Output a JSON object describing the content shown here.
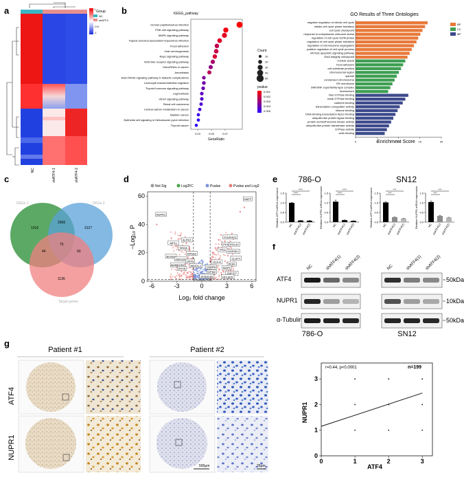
{
  "panels": {
    "a": {
      "label": "a",
      "legend_title": "Group",
      "legend_groups": [
        {
          "name": "NC",
          "color": "#3ab6c4"
        },
        {
          "name": "shATF4",
          "color": "#e8908f"
        }
      ],
      "scale_ticks": [
        "1",
        "0.5",
        "0",
        "-0.5",
        "-1"
      ],
      "col_labels": [
        "NC",
        "shATF4-1",
        "shATF4-2"
      ]
    },
    "b": {
      "label": "b"
    },
    "c": {
      "label": "c"
    },
    "d": {
      "label": "d"
    },
    "e": {
      "label": "e"
    },
    "f": {
      "label": "f"
    },
    "g": {
      "label": "g"
    }
  },
  "kegg": {
    "title": "KEGG_pathway",
    "terms": [
      "Human papillomavirus infection",
      "PI3K-Akt signaling pathway",
      "MAPK signaling pathway",
      "Kaposi sarcoma-associated herpesvirus infection",
      "Focal adhesion",
      "Viral carcinogenesis",
      "Rap1 signaling pathway",
      "NOD-like receptor signaling pathway",
      "MicroRNAs in cancer",
      "Amoebiasis",
      "AGE-RAGE signaling pathway in diabetic complications",
      "Leukocyte transendothelial migration",
      "Thyroid hormone signaling pathway",
      "Legionellosis",
      "VEGF signaling pathway",
      "Renal cell carcinoma",
      "Central carbon metabolism in cancer",
      "Bladder cancer",
      "Epithelial cell signaling in Helicobacter pylori infection",
      "Thyroid cancer"
    ],
    "gene_ratio": [
      0.091,
      0.071,
      0.069,
      0.062,
      0.058,
      0.057,
      0.055,
      0.052,
      0.049,
      0.047,
      0.039,
      0.039,
      0.038,
      0.036,
      0.036,
      0.035,
      0.033,
      0.031,
      0.031,
      0.028
    ],
    "count": [
      40,
      31,
      30,
      27,
      25,
      25,
      24,
      23,
      22,
      21,
      17,
      17,
      17,
      16,
      16,
      15,
      14,
      13,
      13,
      12
    ],
    "pvalue": [
      0.001,
      0.0014,
      0.0018,
      0.002,
      0.0028,
      0.0026,
      0.0022,
      0.0035,
      0.004,
      0.003,
      0.0045,
      0.005,
      0.0052,
      0.0055,
      0.0058,
      0.006,
      0.0062,
      0.0065,
      0.0068,
      0.007
    ],
    "x_ticks": [
      "0.03",
      "0.05",
      "0.07"
    ],
    "x_label": "GeneRatio",
    "count_title": "Count",
    "count_ticks": [
      "10",
      "20",
      "30",
      "40",
      "50"
    ],
    "pvalue_title": "pvalue",
    "pvalue_ticks": [
      "0.001",
      "0.002",
      "0.003",
      "0.004",
      "0.005"
    ]
  },
  "go": {
    "title": "GO Results of Three Ontologies",
    "x_label": "Enrichment Score",
    "x_ticks": [
      "0",
      "5",
      "10",
      "15",
      "20"
    ],
    "legend": [
      {
        "name": "BP",
        "color": "#e8793a"
      },
      {
        "name": "CC",
        "color": "#3e9e52"
      },
      {
        "name": "MF",
        "color": "#3d4a8c"
      }
    ],
    "terms": [
      {
        "term": "negative regulation of mitotic cell cycle",
        "score": 16.8,
        "cat": "BP"
      },
      {
        "term": "mitotic cell cycle phase transition",
        "score": 16.2,
        "cat": "BP"
      },
      {
        "term": "cell cycle checkpoint",
        "score": 15.6,
        "cat": "BP"
      },
      {
        "term": "response to endoplasmic reticulum stress",
        "score": 15.1,
        "cat": "BP"
      },
      {
        "term": "regulation of cell cycle G2/M phase",
        "score": 14.6,
        "cat": "BP"
      },
      {
        "term": "regulation of cell cycle phase transition",
        "score": 14.2,
        "cat": "BP"
      },
      {
        "term": "regulation of chromosome segregation",
        "score": 13.6,
        "cat": "BP"
      },
      {
        "term": "positive regulation of cell cycle process",
        "score": 13.1,
        "cat": "BP"
      },
      {
        "term": "intrinsic apoptotic signaling pathway",
        "score": 12.6,
        "cat": "BP"
      },
      {
        "term": "DNA integrity checkpoint",
        "score": 12.1,
        "cat": "BP"
      },
      {
        "term": "nuclear speck",
        "score": 11.6,
        "cat": "CC"
      },
      {
        "term": "focal adhesion",
        "score": 11.1,
        "cat": "CC"
      },
      {
        "term": "cell-substrate junction",
        "score": 10.6,
        "cat": "CC"
      },
      {
        "term": "chromosomal region",
        "score": 10.1,
        "cat": "CC"
      },
      {
        "term": "spindle",
        "score": 9.6,
        "cat": "CC"
      },
      {
        "term": "condensed chromosome",
        "score": 9.1,
        "cat": "CC"
      },
      {
        "term": "ER membrane",
        "score": 8.6,
        "cat": "CC"
      },
      {
        "term": "SWI/SNF superfamily-type complex",
        "score": 8.1,
        "cat": "CC"
      },
      {
        "term": "kinetochore",
        "score": 7.6,
        "cat": "CC"
      },
      {
        "term": "Ras GTPase binding",
        "score": 12.3,
        "cat": "MF"
      },
      {
        "term": "small GTPase binding",
        "score": 11.6,
        "cat": "MF"
      },
      {
        "term": "cadherin binding",
        "score": 11.0,
        "cat": "MF"
      },
      {
        "term": "transcription coregulator activity",
        "score": 10.3,
        "cat": "MF"
      },
      {
        "term": "histone binding",
        "score": 9.8,
        "cat": "MF"
      },
      {
        "term": "DNA-binding transcription factor binding",
        "score": 9.3,
        "cat": "MF"
      },
      {
        "term": "ubiquitin-like protein ligase binding",
        "score": 8.8,
        "cat": "MF"
      },
      {
        "term": "protein serine/threonine kinase activity",
        "score": 8.3,
        "cat": "MF"
      },
      {
        "term": "ubiquitin-like protein transferase activity",
        "score": 7.8,
        "cat": "MF"
      },
      {
        "term": "GTPase activity",
        "score": 7.3,
        "cat": "MF"
      },
      {
        "term": "actin binding",
        "score": 6.8,
        "cat": "MF"
      }
    ]
  },
  "venn": {
    "sets": [
      {
        "name": "DEGs 1",
        "color": "#3f9a4a"
      },
      {
        "name": "DEGs 2",
        "color": "#5aa2d8"
      },
      {
        "name": "Target genes",
        "color": "#f08080"
      }
    ],
    "counts": {
      "only1": "1316",
      "only2": "3127",
      "only3": "1136",
      "s12": "2566",
      "s13": "44",
      "s23": "60",
      "s123": "75"
    }
  },
  "volcano": {
    "legend": [
      "Not Sig",
      "Log2FC",
      "Pvalue",
      "Pvalue and Log2FC"
    ],
    "legend_colors": [
      "#9a9a9a",
      "#47a447",
      "#7b93dd",
      "#e87d7d"
    ],
    "x_label": "Log₂ fold change",
    "y_label": "−Log₁₀ P",
    "x_ticks": [
      "-6",
      "-3",
      "0",
      "3",
      "6"
    ],
    "y_ticks": [
      "0",
      "20",
      "40",
      "60"
    ],
    "xlim": [
      -6.5,
      6.5
    ],
    "ylim": [
      0,
      63
    ],
    "labels": [
      {
        "text": "NUPR1",
        "x": -4.9,
        "y": 47
      },
      {
        "text": "ALPK2",
        "x": -1.8,
        "y": 29
      },
      {
        "text": "AIF1L",
        "x": -3.4,
        "y": 27
      },
      {
        "text": "SIN3A",
        "x": -2.2,
        "y": 23.5
      },
      {
        "text": "KPNA2",
        "x": -1.2,
        "y": 19.5
      },
      {
        "text": "BCAS3",
        "x": -3.7,
        "y": 17.5
      },
      {
        "text": "FBXO31",
        "x": -2.5,
        "y": 15.5
      },
      {
        "text": "OPX9",
        "x": -1.4,
        "y": 14
      },
      {
        "text": "AMMECR1",
        "x": -2.9,
        "y": 11.5
      },
      {
        "text": "MAD1L1",
        "x": -0.7,
        "y": 11
      },
      {
        "text": "DHX8",
        "x": -2.4,
        "y": 9
      },
      {
        "text": "SH3GLB2",
        "x": 0.6,
        "y": 3.5
      },
      {
        "text": "DPM2",
        "x": 1.2,
        "y": 6.5
      },
      {
        "text": "CEBPB",
        "x": 1.1,
        "y": 10
      },
      {
        "text": "HLA-A",
        "x": 1.8,
        "y": 13.5
      },
      {
        "text": "MAFF",
        "x": 5.5,
        "y": 58
      },
      {
        "text": "PLEKHO1",
        "x": 3.4,
        "y": 31
      },
      {
        "text": "PKN2",
        "x": 3.0,
        "y": 26
      },
      {
        "text": "RGL4X",
        "x": 3.9,
        "y": 26
      },
      {
        "text": "PPIA",
        "x": 2.5,
        "y": 22
      },
      {
        "text": "DDR3K1",
        "x": 3.8,
        "y": 21
      },
      {
        "text": "CLSTT",
        "x": 4.1,
        "y": 16
      },
      {
        "text": "PFAS",
        "x": 3.6,
        "y": 12
      },
      {
        "text": "MAPK",
        "x": 3.0,
        "y": 9.5
      },
      {
        "text": "ZNF707",
        "x": 3.6,
        "y": 5.5
      },
      {
        "text": "RPL8D5",
        "x": 3.1,
        "y": 3
      }
    ],
    "pvalue_threshold": 1.3,
    "log2fc_threshold": 1
  },
  "qpcr": {
    "lines": [
      {
        "name": "786-O"
      },
      {
        "name": "SN12"
      }
    ],
    "charts": [
      {
        "ylabel": "Relative ATF4 mRNA expression",
        "yticks": [
          "0.0",
          "0.5",
          "1.0",
          "1.5"
        ],
        "categories": [
          "NC",
          "shATF4(1)",
          "shATF4(2)"
        ],
        "values": [
          1.0,
          0.08,
          0.07
        ],
        "errors": [
          0.02,
          0.01,
          0.01
        ],
        "sig": [
          "****",
          "****"
        ],
        "fill": "#000000"
      },
      {
        "ylabel": "Relative NUPR1 mRNA expression",
        "yticks": [
          "0.0",
          "0.5",
          "1.0",
          "1.5"
        ],
        "categories": [
          "NC",
          "shATF4(1)",
          "shATF4(2)"
        ],
        "values": [
          1.06,
          0.1,
          0.06
        ],
        "errors": [
          0.08,
          0.01,
          0.01
        ],
        "sig": [
          "****",
          "****"
        ],
        "fill": "#000000"
      },
      {
        "ylabel": "Relative ATF4 mRNA expression",
        "yticks": [
          "0.0",
          "0.5",
          "1.0",
          "1.5"
        ],
        "categories": [
          "NC",
          "shATF4(1)",
          "shATF4(2)"
        ],
        "values": [
          1.02,
          0.25,
          0.19
        ],
        "errors": [
          0.03,
          0.01,
          0.01
        ],
        "sig": [
          "***",
          "***"
        ],
        "fill": "#000000"
      },
      {
        "ylabel": "Relative NUPR1 mRNA expression",
        "yticks": [
          "0.0",
          "0.5",
          "1.0",
          "1.5"
        ],
        "categories": [
          "NC",
          "shATF4(1)",
          "shATF4(2)"
        ],
        "values": [
          1.04,
          0.32,
          0.24
        ],
        "errors": [
          0.06,
          0.02,
          0.01
        ],
        "sig": [
          "***",
          "***"
        ],
        "fill": "#000000"
      }
    ]
  },
  "western": {
    "lanes": [
      "NC",
      "shATF4(1)",
      "shATF4(2)"
    ],
    "rows": [
      "ATF4",
      "NUPR1",
      "α-Tubulin"
    ],
    "markers": [
      "50kDa",
      "10kDa",
      "50kDa"
    ],
    "cell_lines": [
      "786-O",
      "SN12"
    ],
    "intensity": {
      "786-O": [
        [
          0.95,
          0.6,
          0.45
        ],
        [
          0.9,
          0.35,
          0.25
        ],
        [
          0.95,
          0.92,
          0.9
        ]
      ],
      "SN12": [
        [
          0.85,
          0.5,
          0.45
        ],
        [
          0.7,
          0.35,
          0.3
        ],
        [
          0.9,
          0.9,
          0.88
        ]
      ]
    }
  },
  "ihc": {
    "patients": [
      "Patient #1",
      "Patient #2"
    ],
    "rows": [
      "ATF4",
      "NUPR1"
    ],
    "scale_low": "500μm",
    "scale_high": "25μm"
  },
  "correlation": {
    "stat": "r=0.44,  p<0.0001",
    "n": "n=199",
    "xlabel": "ATF4",
    "ylabel": "NUPR1",
    "xticks": [
      "0",
      "1",
      "2",
      "3"
    ],
    "yticks": [
      "0",
      "1",
      "2",
      "3"
    ],
    "xlim": [
      0,
      3.3
    ],
    "ylim": [
      0,
      3.3
    ],
    "points": [
      [
        1,
        1
      ],
      [
        1,
        2
      ],
      [
        1,
        3
      ],
      [
        2,
        1
      ],
      [
        2,
        2
      ],
      [
        2,
        3
      ],
      [
        3,
        1
      ],
      [
        3,
        2
      ],
      [
        3,
        3
      ]
    ],
    "fit": [
      [
        0,
        1.15
      ],
      [
        3,
        2.45
      ]
    ]
  }
}
